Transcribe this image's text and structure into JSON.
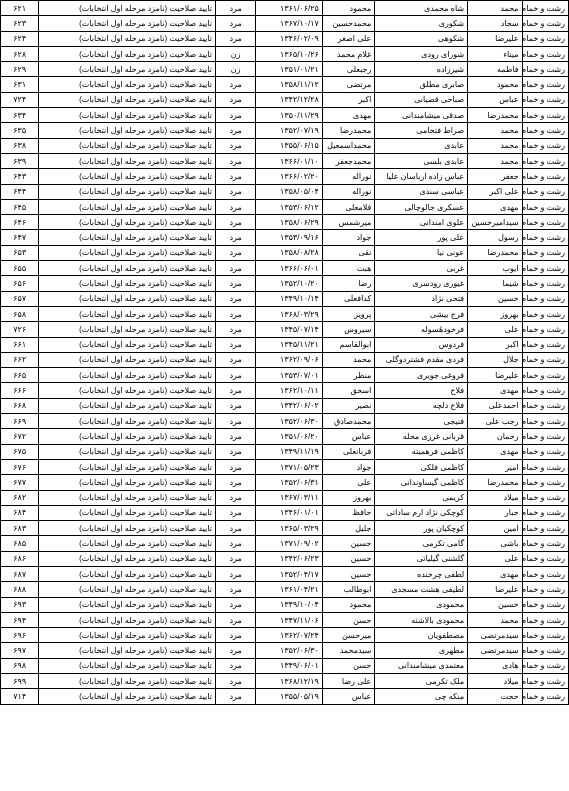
{
  "table": {
    "region_text": "رشت و خمام",
    "status_text": "تایید صلاحیت (نامزد مرحله اول انتخابات)",
    "gender_male": "مرد",
    "gender_female": "زن",
    "columns": [
      {
        "key": "region",
        "cls": "col-region"
      },
      {
        "key": "fname",
        "cls": "col-fname"
      },
      {
        "key": "lname",
        "cls": "col-lname"
      },
      {
        "key": "father",
        "cls": "col-father"
      },
      {
        "key": "dob",
        "cls": "col-dob"
      },
      {
        "key": "gender",
        "cls": "col-gender"
      },
      {
        "key": "status",
        "cls": "col-status"
      },
      {
        "key": "code",
        "cls": "col-code"
      }
    ],
    "rows": [
      {
        "fname": "محمد",
        "lname": "شاه محمدی",
        "father": "محمود",
        "dob": "۱۳۶۱/۰۶/۲۵",
        "gender": "m",
        "code": "۶۲۱"
      },
      {
        "fname": "سجاد",
        "lname": "شکوری",
        "father": "محمدحسین",
        "dob": "۱۳۶۷/۱۰/۱۷",
        "gender": "m",
        "code": "۶۲۳"
      },
      {
        "fname": "علیرضا",
        "lname": "شکوهی",
        "father": "علی اصغر",
        "dob": "۱۳۴۶/۰۲/۰۹",
        "gender": "m",
        "code": "۶۲۴"
      },
      {
        "fname": "میناء",
        "lname": "شورای رودی",
        "father": "غلام محمد",
        "dob": "۱۳۶۵/۱۰/۲۶",
        "gender": "f",
        "code": "۶۲۸"
      },
      {
        "fname": "فاطمه",
        "lname": "شیرزاده",
        "father": "رجبعلی",
        "dob": "۱۳۵۱/۰۱/۲۱",
        "gender": "f",
        "code": "۶۲۹"
      },
      {
        "fname": "محمود",
        "lname": "صابری مطلق",
        "father": "مرتضی",
        "dob": "۱۳۵۸/۱۱/۱۲",
        "gender": "m",
        "code": "۶۳۱"
      },
      {
        "fname": "عباس",
        "lname": "صباحی قضیانی",
        "father": "اکبر",
        "dob": "۱۳۴۲/۱۲/۲۸",
        "gender": "m",
        "code": "۷۲۴"
      },
      {
        "fname": "محمدرضا",
        "lname": "صدقی میشامندانی",
        "father": "مهدی",
        "dob": "۱۳۵۰/۱۱/۲۹",
        "gender": "m",
        "code": "۶۳۴"
      },
      {
        "fname": "محمد",
        "lname": "صراط فتخامی",
        "father": "محمدرضا",
        "dob": "۱۳۵۲/۰۷/۱۹",
        "gender": "m",
        "code": "۶۳۵"
      },
      {
        "fname": "محمد",
        "lname": "عابدی",
        "father": "محمداسمعیل",
        "dob": "۱۳۵۵/۰۶/۱۵",
        "gender": "m",
        "code": "۶۳۸"
      },
      {
        "fname": "محمد",
        "lname": "عابدی بلسی",
        "father": "محمدجعفر",
        "dob": "۱۳۶۶/۰۱/۱۰",
        "gender": "m",
        "code": "۶۳۹"
      },
      {
        "fname": "جعفر",
        "lname": "عباس زاده ارباسان علیا",
        "father": "نوراله",
        "dob": "۱۳۶۶/۰۲/۲۰",
        "gender": "m",
        "code": "۶۴۳"
      },
      {
        "fname": "علی اکبر",
        "lname": "عباسی سندی",
        "father": "نوراله",
        "dob": "۱۳۵۸/۰۵/۰۴",
        "gender": "m",
        "code": "۶۴۴"
      },
      {
        "fname": "مهدی",
        "lname": "عسکری جالوچالی",
        "father": "فلامعلی",
        "dob": "۱۳۵۳/۰۶/۱۲",
        "gender": "m",
        "code": "۶۴۵"
      },
      {
        "fname": "سیدامیرحسین",
        "lname": "علوی امندانی",
        "father": "میرشمس",
        "dob": "۱۳۵۸/۰۶/۲۹",
        "gender": "m",
        "code": "۶۴۶"
      },
      {
        "fname": "رسول",
        "lname": "علی پور",
        "father": "جواد",
        "dob": "۱۳۵۳/۰۹/۱۶",
        "gender": "m",
        "code": "۶۴۷"
      },
      {
        "fname": "محمدرضا",
        "lname": "عونی نیا",
        "father": "نقی",
        "dob": "۱۳۵۸/۰۸/۲۸",
        "gender": "m",
        "code": "۶۵۳"
      },
      {
        "fname": "ایوب",
        "lname": "غربی",
        "father": "هبت",
        "dob": "۱۳۶۶/۰۶/۰۱",
        "gender": "m",
        "code": "۶۵۵"
      },
      {
        "fname": "شیما",
        "lname": "غیوری رودسری",
        "father": "رضا",
        "dob": "۱۳۵۲/۱۰/۲۰",
        "gender": "m",
        "code": "۶۵۶"
      },
      {
        "fname": "حسین",
        "lname": "فتحی نژاد",
        "father": "کدافعلی",
        "dob": "۱۳۴۹/۱۰/۱۴",
        "gender": "m",
        "code": "۶۵۷"
      },
      {
        "fname": "بهروز",
        "lname": "فرج بیشی",
        "father": "پرویز",
        "dob": "۱۳۶۸/۰۳/۲۹",
        "gender": "m",
        "code": "۶۵۸"
      },
      {
        "fname": "علی",
        "lname": "فرخودهٔسوله",
        "father": "سیروس",
        "dob": "۱۳۴۵/۰۷/۱۴",
        "gender": "m",
        "code": "۷۲۶"
      },
      {
        "fname": "اکبر",
        "lname": "فردوس",
        "father": "ابوالقاسم",
        "dob": "۱۳۴۵/۱۱/۲۱",
        "gender": "m",
        "code": "۶۶۱"
      },
      {
        "fname": "جلال",
        "lname": "فردی مقدم فشتردوگلی",
        "father": "محمد",
        "dob": "۱۳۶۲/۰۹/۰۶",
        "gender": "m",
        "code": "۶۶۲"
      },
      {
        "fname": "علیرضا",
        "lname": "فروغی جویری",
        "father": "منظر",
        "dob": "۱۳۵۳/۰۷/۰۱",
        "gender": "m",
        "code": "۶۶۵"
      },
      {
        "fname": "مهدی",
        "lname": "فلاح",
        "father": "اسحق",
        "dob": "۱۳۶۲/۱۰/۱۱",
        "gender": "m",
        "code": "۶۶۶"
      },
      {
        "fname": "احمدعلی",
        "lname": "فلاح دلچه",
        "father": "نصیر",
        "dob": "۱۳۴۲/۰۶/۰۲",
        "gender": "m",
        "code": "۶۶۸"
      },
      {
        "fname": "رجب علی",
        "lname": "فنیجی",
        "father": "محمدصادق",
        "dob": "۱۳۵۲/۰۶/۳۰",
        "gender": "m",
        "code": "۶۶۹"
      },
      {
        "fname": "رحمان",
        "lname": "قربانی غرزی محله",
        "father": "عباس",
        "dob": "۱۳۵۱/۰۶/۲۰",
        "gender": "m",
        "code": "۶۷۲"
      },
      {
        "fname": "مهدی",
        "lname": "کاظمی فرهمیته",
        "father": "قربانعلی",
        "dob": "۱۳۴۹/۱۱/۱۹",
        "gender": "m",
        "code": "۶۷۵"
      },
      {
        "fname": "امیر",
        "lname": "کاظمی فلکی",
        "father": "جواد",
        "dob": "۱۳۷۱/۰۵/۲۳",
        "gender": "m",
        "code": "۶۷۶"
      },
      {
        "fname": "محمدرضا",
        "lname": "کاظمی گیساوندانی",
        "father": "علی",
        "dob": "۱۳۵۲/۰۶/۳۱",
        "gender": "m",
        "code": "۶۷۷"
      },
      {
        "fname": "میلاد",
        "lname": "کریمی",
        "father": "بهروز",
        "dob": "۱۳۶۷/۰۳/۱۱",
        "gender": "m",
        "code": "۶۸۲"
      },
      {
        "fname": "جبار",
        "lname": "کوچکی نژاد ارم ساداتی",
        "father": "حافظ",
        "dob": "۱۳۴۶/۰۱/۰۱",
        "gender": "m",
        "code": "۶۸۴"
      },
      {
        "fname": "امین",
        "lname": "کوچکیان پور",
        "father": "جلیل",
        "dob": "۱۳۶۵/۰۳/۲۹",
        "gender": "m",
        "code": "۶۸۳"
      },
      {
        "fname": "باشی",
        "lname": "گامی تکرمی",
        "father": "حسین",
        "dob": "۱۳۷۱/۰۹/۰۲",
        "gender": "m",
        "code": "۶۸۵"
      },
      {
        "fname": "علی",
        "lname": "گلشنی گیلیاتی",
        "father": "حسین",
        "dob": "۱۳۴۲/۰۶/۲۳",
        "gender": "m",
        "code": "۶۸۶"
      },
      {
        "fname": "مهدی",
        "lname": "لطفی چرخنده",
        "father": "حسین",
        "dob": "۱۳۵۲/۰۴/۱۷",
        "gender": "m",
        "code": "۶۸۷"
      },
      {
        "fname": "علیرضا",
        "lname": "لطیفی هشت مسجدی",
        "father": "ابوطالب",
        "dob": "۱۳۶۱/۰۴/۲۱",
        "gender": "m",
        "code": "۶۸۸"
      },
      {
        "fname": "حسین",
        "lname": "محمودی",
        "father": "محمود",
        "dob": "۱۳۴۹/۱۰/۰۴",
        "gender": "m",
        "code": "۶۹۳"
      },
      {
        "fname": "محمد",
        "lname": "محمودی بالاشته",
        "father": "حسن",
        "dob": "۱۳۴۷/۱۱/۰۶",
        "gender": "m",
        "code": "۶۹۴"
      },
      {
        "fname": "سیدمرتضی",
        "lname": "مصطفویان",
        "father": "میرحسن",
        "dob": "۱۳۶۲/۰۷/۲۴",
        "gender": "m",
        "code": "۶۹۶"
      },
      {
        "fname": "سیدمرتضی",
        "lname": "مطهری",
        "father": "سیدمحمد",
        "dob": "۱۳۵۲/۰۶/۳۰",
        "gender": "m",
        "code": "۶۹۷"
      },
      {
        "fname": "هادی",
        "lname": "معتمدی میشامندانی",
        "father": "حسن",
        "dob": "۱۳۴۹/۰۶/۰۱",
        "gender": "m",
        "code": "۶۹۸"
      },
      {
        "fname": "میلاد",
        "lname": "ملک تکرمی",
        "father": "علی رضا",
        "dob": "۱۳۶۸/۱۲/۱۹",
        "gender": "m",
        "code": "۶۹۹"
      },
      {
        "fname": "حجت",
        "lname": "منکه چی",
        "father": "عباس",
        "dob": "۱۳۵۵/۰۵/۱۹",
        "gender": "m",
        "code": "۷۱۴"
      }
    ]
  }
}
